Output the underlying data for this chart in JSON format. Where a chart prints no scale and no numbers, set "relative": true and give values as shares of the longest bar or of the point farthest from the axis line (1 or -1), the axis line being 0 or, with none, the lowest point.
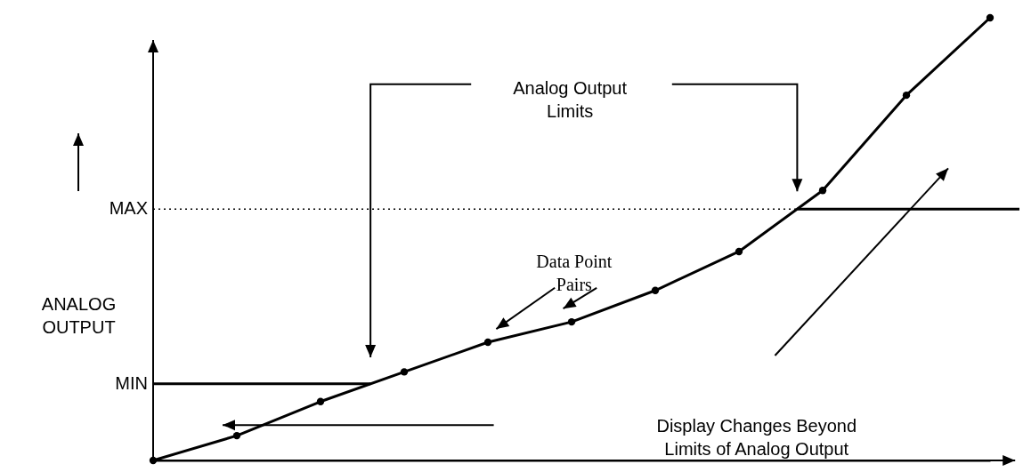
{
  "chart_data": {
    "type": "line",
    "relative": true,
    "ylabel": "ANALOG OUTPUT",
    "categories": [
      null,
      null,
      null,
      null,
      null,
      null,
      null,
      null,
      null,
      null,
      null
    ],
    "series": [
      {
        "color": "#000000",
        "marker": "circle",
        "values": [
          0,
          0.056,
          0.133,
          0.2,
          0.267,
          0.313,
          0.384,
          0.472,
          0.61,
          0.825,
          1
        ]
      }
    ],
    "ref_lines": [
      {
        "axis": "y",
        "value": 0.173,
        "label": "MIN",
        "line_style": "solid",
        "color": "#000000"
      },
      {
        "axis": "y",
        "value": 0.568,
        "label": "MAX",
        "line_style": "dotted",
        "color": "#000000"
      },
      {
        "axis": "y",
        "value": 0.568,
        "line_style": "solid",
        "color": "#000000"
      }
    ],
    "annotations": [
      "Analog Output\nLimits",
      "Data Point\nPairs",
      "Display Changes Beyond\nLimits of Analog Output"
    ]
  }
}
